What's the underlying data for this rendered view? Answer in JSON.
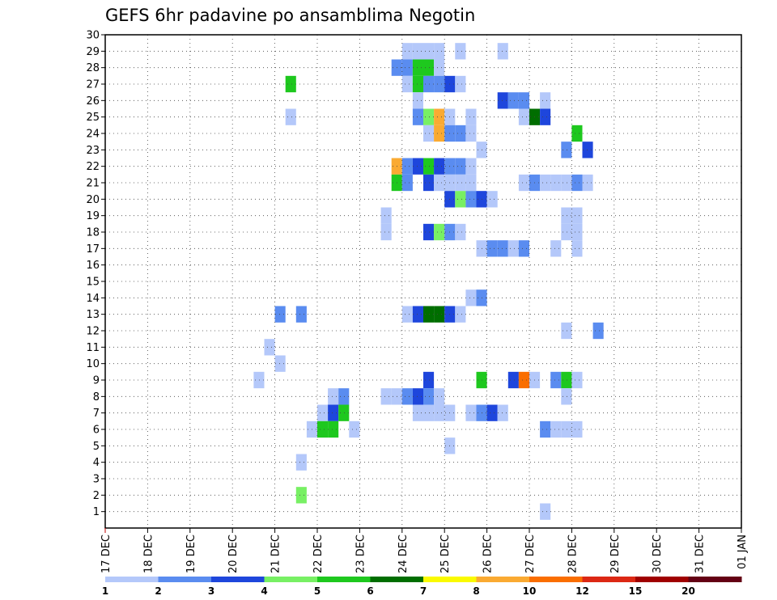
{
  "chart_data": {
    "type": "heatmap",
    "title": "GEFS 6hr padavine po ansamblima Negotin",
    "xlabel": "",
    "ylabel": "",
    "x_ticks": [
      "17 DEC",
      "18 DEC",
      "19 DEC",
      "20 DEC",
      "21 DEC",
      "22 DEC",
      "23 DEC",
      "24 DEC",
      "25 DEC",
      "26 DEC",
      "27 DEC",
      "28 DEC",
      "29 DEC",
      "30 DEC",
      "31 DEC",
      "01 JAN"
    ],
    "y_ticks": [
      "1",
      "2",
      "3",
      "4",
      "5",
      "6",
      "7",
      "8",
      "9",
      "10",
      "11",
      "12",
      "13",
      "14",
      "15",
      "16",
      "17",
      "18",
      "19",
      "20",
      "21",
      "22",
      "23",
      "24",
      "25",
      "26",
      "27",
      "28",
      "29",
      "30"
    ],
    "xlim": [
      0,
      15
    ],
    "ylim": [
      0,
      30
    ],
    "grid": true,
    "x_unit": "days since 17 DEC (one cell = 6 h)",
    "levels": [
      {
        "label": "1",
        "color": "#b4c8fa"
      },
      {
        "label": "2",
        "color": "#5a8cf0"
      },
      {
        "label": "3",
        "color": "#1e46dc"
      },
      {
        "label": "4",
        "color": "#78f064"
      },
      {
        "label": "5",
        "color": "#1ec81e"
      },
      {
        "label": "6",
        "color": "#006e00"
      },
      {
        "label": "7",
        "color": "#fafa00"
      },
      {
        "label": "8",
        "color": "#faaa32"
      },
      {
        "label": "10",
        "color": "#fa6e00"
      },
      {
        "label": "12",
        "color": "#dc2814"
      },
      {
        "label": "15",
        "color": "#a00000"
      },
      {
        "label": "20",
        "color": "#640014"
      }
    ],
    "cells": [
      [
        7.0,
        29,
        0
      ],
      [
        7.25,
        29,
        0
      ],
      [
        7.5,
        29,
        0
      ],
      [
        7.75,
        29,
        0
      ],
      [
        8.25,
        29,
        0
      ],
      [
        9.25,
        29,
        0
      ],
      [
        6.75,
        28,
        1
      ],
      [
        7.0,
        28,
        1
      ],
      [
        7.25,
        28,
        4
      ],
      [
        7.5,
        28,
        4
      ],
      [
        7.75,
        28,
        0
      ],
      [
        4.25,
        27,
        4
      ],
      [
        7.0,
        27,
        0
      ],
      [
        7.25,
        27,
        4
      ],
      [
        7.5,
        27,
        1
      ],
      [
        7.75,
        27,
        1
      ],
      [
        8.0,
        27,
        2
      ],
      [
        8.25,
        27,
        0
      ],
      [
        7.25,
        26,
        0
      ],
      [
        9.25,
        26,
        2
      ],
      [
        9.5,
        26,
        1
      ],
      [
        9.75,
        26,
        1
      ],
      [
        10.25,
        26,
        0
      ],
      [
        4.25,
        25,
        0
      ],
      [
        7.25,
        25,
        1
      ],
      [
        7.5,
        25,
        3
      ],
      [
        7.75,
        25,
        7
      ],
      [
        8.0,
        25,
        0
      ],
      [
        8.5,
        25,
        0
      ],
      [
        9.75,
        25,
        0
      ],
      [
        10.0,
        25,
        5
      ],
      [
        10.25,
        25,
        2
      ],
      [
        7.5,
        24,
        0
      ],
      [
        7.75,
        24,
        7
      ],
      [
        8.0,
        24,
        1
      ],
      [
        8.25,
        24,
        1
      ],
      [
        8.5,
        24,
        0
      ],
      [
        11.0,
        24,
        4
      ],
      [
        8.75,
        23,
        0
      ],
      [
        10.75,
        23,
        1
      ],
      [
        11.25,
        23,
        2
      ],
      [
        6.75,
        22,
        7
      ],
      [
        7.0,
        22,
        1
      ],
      [
        7.25,
        22,
        2
      ],
      [
        7.5,
        22,
        4
      ],
      [
        7.75,
        22,
        2
      ],
      [
        8.0,
        22,
        1
      ],
      [
        8.25,
        22,
        1
      ],
      [
        8.5,
        22,
        0
      ],
      [
        6.75,
        21,
        4
      ],
      [
        7.0,
        21,
        1
      ],
      [
        7.5,
        21,
        2
      ],
      [
        7.75,
        21,
        0
      ],
      [
        8.0,
        21,
        0
      ],
      [
        8.25,
        21,
        0
      ],
      [
        8.5,
        21,
        0
      ],
      [
        9.75,
        21,
        0
      ],
      [
        10.0,
        21,
        1
      ],
      [
        10.25,
        21,
        0
      ],
      [
        10.5,
        21,
        0
      ],
      [
        10.75,
        21,
        0
      ],
      [
        11.0,
        21,
        1
      ],
      [
        11.25,
        21,
        0
      ],
      [
        8.0,
        20,
        2
      ],
      [
        8.25,
        20,
        3
      ],
      [
        8.5,
        20,
        1
      ],
      [
        8.75,
        20,
        2
      ],
      [
        9.0,
        20,
        0
      ],
      [
        6.5,
        19,
        0
      ],
      [
        10.75,
        19,
        0
      ],
      [
        11.0,
        19,
        0
      ],
      [
        6.5,
        18,
        0
      ],
      [
        7.5,
        18,
        2
      ],
      [
        7.75,
        18,
        3
      ],
      [
        8.0,
        18,
        1
      ],
      [
        8.25,
        18,
        0
      ],
      [
        10.75,
        18,
        0
      ],
      [
        11.0,
        18,
        0
      ],
      [
        8.75,
        17,
        0
      ],
      [
        9.0,
        17,
        1
      ],
      [
        9.25,
        17,
        1
      ],
      [
        9.5,
        17,
        0
      ],
      [
        9.75,
        17,
        1
      ],
      [
        10.5,
        17,
        0
      ],
      [
        11.0,
        17,
        0
      ],
      [
        8.5,
        14,
        0
      ],
      [
        8.75,
        14,
        1
      ],
      [
        4.0,
        13,
        1
      ],
      [
        4.5,
        13,
        1
      ],
      [
        7.0,
        13,
        0
      ],
      [
        7.25,
        13,
        2
      ],
      [
        7.5,
        13,
        5
      ],
      [
        7.75,
        13,
        5
      ],
      [
        8.0,
        13,
        2
      ],
      [
        8.25,
        13,
        0
      ],
      [
        10.75,
        12,
        0
      ],
      [
        11.5,
        12,
        1
      ],
      [
        3.75,
        11,
        0
      ],
      [
        4.0,
        10,
        0
      ],
      [
        3.5,
        9,
        0
      ],
      [
        7.5,
        9,
        2
      ],
      [
        8.75,
        9,
        4
      ],
      [
        9.5,
        9,
        2
      ],
      [
        9.75,
        9,
        8
      ],
      [
        10.0,
        9,
        0
      ],
      [
        10.5,
        9,
        1
      ],
      [
        10.75,
        9,
        4
      ],
      [
        11.0,
        9,
        0
      ],
      [
        5.25,
        8,
        0
      ],
      [
        5.5,
        8,
        1
      ],
      [
        6.5,
        8,
        0
      ],
      [
        6.75,
        8,
        0
      ],
      [
        7.0,
        8,
        1
      ],
      [
        7.25,
        8,
        2
      ],
      [
        7.5,
        8,
        1
      ],
      [
        7.75,
        8,
        0
      ],
      [
        10.75,
        8,
        0
      ],
      [
        5.0,
        7,
        0
      ],
      [
        5.25,
        7,
        2
      ],
      [
        5.5,
        7,
        4
      ],
      [
        7.25,
        7,
        0
      ],
      [
        7.5,
        7,
        0
      ],
      [
        7.75,
        7,
        0
      ],
      [
        8.0,
        7,
        0
      ],
      [
        8.5,
        7,
        0
      ],
      [
        8.75,
        7,
        1
      ],
      [
        9.0,
        7,
        2
      ],
      [
        9.25,
        7,
        0
      ],
      [
        4.75,
        6,
        0
      ],
      [
        5.0,
        6,
        4
      ],
      [
        5.25,
        6,
        4
      ],
      [
        5.75,
        6,
        0
      ],
      [
        10.25,
        6,
        1
      ],
      [
        10.5,
        6,
        0
      ],
      [
        10.75,
        6,
        0
      ],
      [
        11.0,
        6,
        0
      ],
      [
        8.0,
        5,
        0
      ],
      [
        4.5,
        4,
        0
      ],
      [
        4.5,
        2,
        3
      ],
      [
        10.25,
        1,
        0
      ]
    ]
  }
}
